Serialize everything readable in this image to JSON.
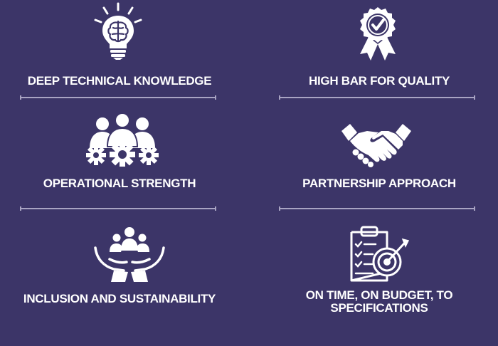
{
  "items": [
    {
      "label": "DEEP TECHNICAL KNOWLEDGE",
      "icon": "lightbulb-brain-icon"
    },
    {
      "label": "HIGH BAR FOR QUALITY",
      "icon": "quality-ribbon-badge-icon"
    },
    {
      "label": "OPERATIONAL STRENGTH",
      "icon": "team-gears-icon"
    },
    {
      "label": "PARTNERSHIP APPROACH",
      "icon": "handshake-icon"
    },
    {
      "label": "INCLUSION AND SUSTAINABILITY",
      "icon": "people-in-hands-icon"
    },
    {
      "label_line1": "ON TIME, ON BUDGET, TO",
      "label_line2": "SPECIFICATIONS",
      "icon": "clipboard-target-icon"
    }
  ],
  "colors": {
    "background": "#3c3568",
    "text": "#ffffff",
    "divider": "#a9a4c3"
  }
}
